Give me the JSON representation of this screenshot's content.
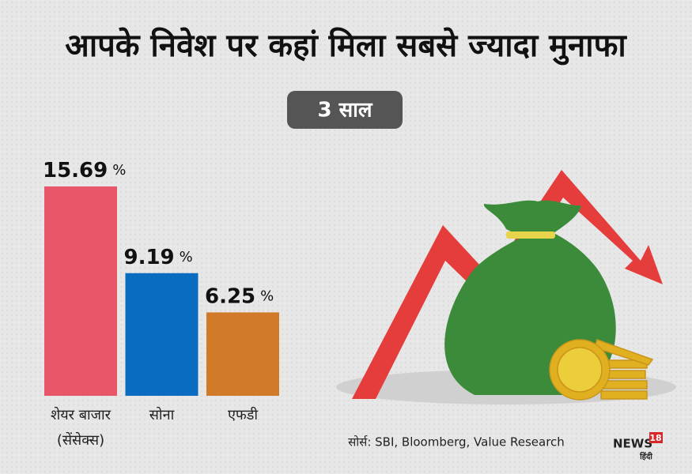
{
  "chart_data": {
    "type": "bar",
    "title": "आपके निवेश पर कहां मिला सबसे ज्यादा मुनाफा",
    "subtitle": "3 साल",
    "categories": [
      [
        "शेयर बाजार",
        "(सेंसेक्स)"
      ],
      [
        "सोना"
      ],
      [
        "एफडी"
      ]
    ],
    "values": [
      15.69,
      9.19,
      6.25
    ],
    "unit": "%",
    "colors": [
      "#e8566a",
      "#0a6cc0",
      "#d07a2a"
    ],
    "source": "सोर्स: SBI, Bloomberg, Value Research",
    "logo": {
      "name": "NEWS",
      "number": "18",
      "language": "हिंदी"
    }
  }
}
